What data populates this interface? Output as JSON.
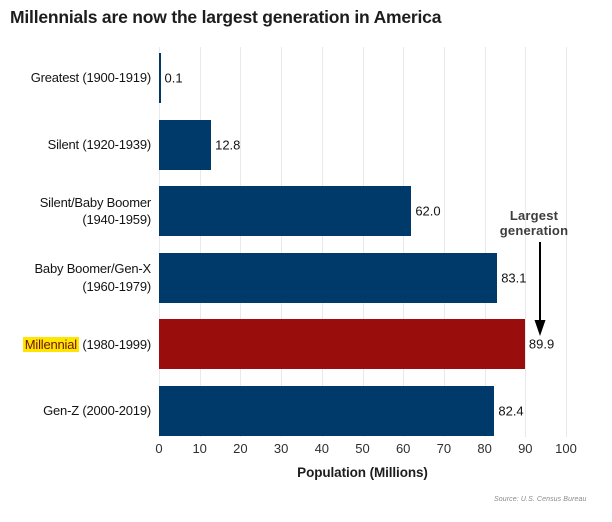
{
  "chart_data": {
    "type": "bar",
    "orientation": "horizontal",
    "title": "Millennials are now the largest generation in America",
    "xlabel": "Population (Millions)",
    "xlim": [
      0,
      100
    ],
    "xticks": [
      0,
      10,
      20,
      30,
      40,
      50,
      60,
      70,
      80,
      90,
      100
    ],
    "grid": "vertical-light-gray",
    "legend": "none",
    "categories": [
      "Greatest (1900-1919)",
      "Silent (1920-1939)",
      "Silent/Baby Boomer (1940-1959)",
      "Baby Boomer/Gen-X (1960-1979)",
      "Millennial (1980-1999)",
      "Gen-Z (2000-2019)"
    ],
    "values": [
      0.1,
      12.8,
      62.0,
      83.1,
      89.9,
      82.4
    ],
    "rows": [
      {
        "label_lines": [
          "Greatest (1900-1919)"
        ],
        "value": 0.1,
        "value_label": "0.1",
        "color": "#003A6B",
        "highlighted": false
      },
      {
        "label_lines": [
          "Silent (1920-1939)"
        ],
        "value": 12.8,
        "value_label": "12.8",
        "color": "#003A6B",
        "highlighted": false
      },
      {
        "label_lines": [
          "Silent/Baby Boomer",
          "(1940-1959)"
        ],
        "value": 62.0,
        "value_label": "62.0",
        "color": "#003A6B",
        "highlighted": false
      },
      {
        "label_lines": [
          "Baby Boomer/Gen-X",
          "(1960-1979)"
        ],
        "value": 83.1,
        "value_label": "83.1",
        "color": "#003A6B",
        "highlighted": false
      },
      {
        "label_highlight": "Millennial",
        "label_rest": " (1980-1999)",
        "value": 89.9,
        "value_label": "89.9",
        "color": "#9A0D0D",
        "highlighted": true
      },
      {
        "label_lines": [
          "Gen-Z (2000-2019)"
        ],
        "value": 82.4,
        "value_label": "82.4",
        "color": "#003A6B",
        "highlighted": false
      }
    ],
    "annotation": {
      "line1": "Largest",
      "line2": "generation",
      "points_to": "Millennial (1980-1999)"
    },
    "source": "Source: U.S. Census Bureau",
    "colors": {
      "bar_default": "#003A6B",
      "bar_highlight": "#9A0D0D",
      "label_highlight_bg": "#FFE600",
      "label_highlight_text": "#701010",
      "gridline": "#E9E9E9",
      "annotation_text": "#3D3D3D",
      "arrow": "#000000"
    }
  }
}
